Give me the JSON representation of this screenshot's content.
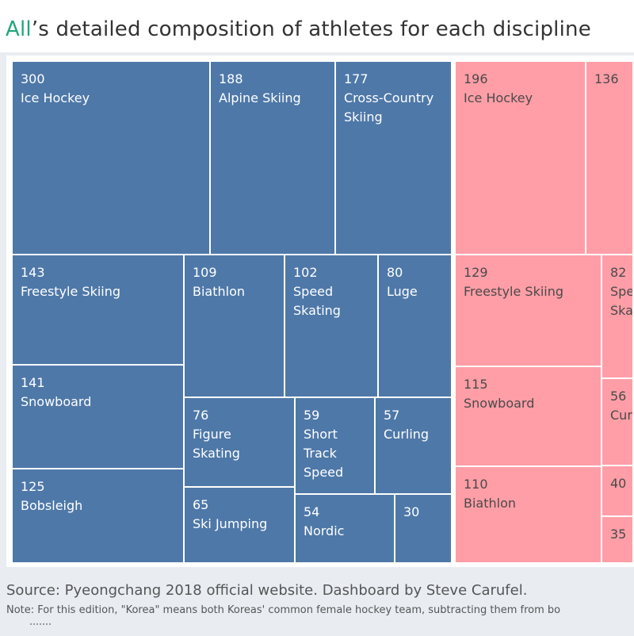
{
  "header": {
    "title_highlight": "All",
    "title_rest": "’s detailed composition of athletes for each discipline"
  },
  "colors": {
    "all": "#4e78a8",
    "female": "#ff9ea7",
    "highlight": "#1fa67a"
  },
  "chart_data": [
    {
      "type": "treemap",
      "name": "",
      "items": [
        {
          "value": 300,
          "label": "Ice Hockey"
        },
        {
          "value": 188,
          "label": "Alpine Skiing"
        },
        {
          "value": 177,
          "label": "Cross-Country Skiing"
        },
        {
          "value": 143,
          "label": "Freestyle Skiing"
        },
        {
          "value": 109,
          "label": "Biathlon"
        },
        {
          "value": 102,
          "label": "Speed Skating"
        },
        {
          "value": 80,
          "label": "Luge"
        },
        {
          "value": 141,
          "label": "Snowboard"
        },
        {
          "value": 76,
          "label": "Figure Skating"
        },
        {
          "value": 59,
          "label": "Short Track Speed"
        },
        {
          "value": 57,
          "label": "Curling"
        },
        {
          "value": 125,
          "label": "Bobsleigh"
        },
        {
          "value": 65,
          "label": "Ski Jumping"
        },
        {
          "value": 54,
          "label": "Nordic"
        },
        {
          "value": 30,
          "label": ""
        }
      ]
    },
    {
      "type": "treemap",
      "name": "",
      "items": [
        {
          "value": 196,
          "label": "Ice Hockey"
        },
        {
          "value": 136,
          "label": ""
        },
        {
          "value": 129,
          "label": "Freestyle Skiing"
        },
        {
          "value": 82,
          "label": "Spe Ska"
        },
        {
          "value": 115,
          "label": "Snowboard"
        },
        {
          "value": 56,
          "label": "Cur"
        },
        {
          "value": 110,
          "label": "Biathlon"
        },
        {
          "value": 40,
          "label": ""
        },
        {
          "value": 35,
          "label": ""
        }
      ]
    }
  ],
  "footer": {
    "source": "Source: Pyeongchang 2018 official website. Dashboard by Steve Carufel.",
    "note": "Note: For this edition, \"Korea\" means both Koreas' common female hockey team, subtracting them from bo"
  }
}
